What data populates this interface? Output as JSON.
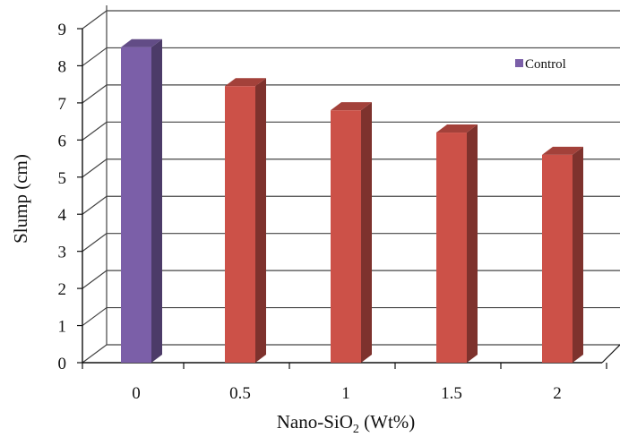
{
  "chart_data": {
    "type": "bar",
    "categories": [
      "0",
      "0.5",
      "1",
      "1.5",
      "2"
    ],
    "values": [
      8.5,
      7.45,
      6.8,
      6.2,
      5.6
    ],
    "highlight_index": 0,
    "xlabel": {
      "main": "Nano-SiO",
      "sub": "2",
      "suffix": " (Wt%)"
    },
    "ylabel": "Slump (cm)",
    "ylim": [
      0,
      9
    ],
    "yticks": [
      "0",
      "1",
      "2",
      "3",
      "4",
      "5",
      "6",
      "7",
      "8",
      "9"
    ],
    "grid": true,
    "legend": {
      "position": "top-right",
      "label": "Control",
      "color": "#7b5fa8"
    },
    "colors": {
      "control": "#7b5fa8",
      "treatment": "#cc5148",
      "grid": "#444444"
    }
  }
}
